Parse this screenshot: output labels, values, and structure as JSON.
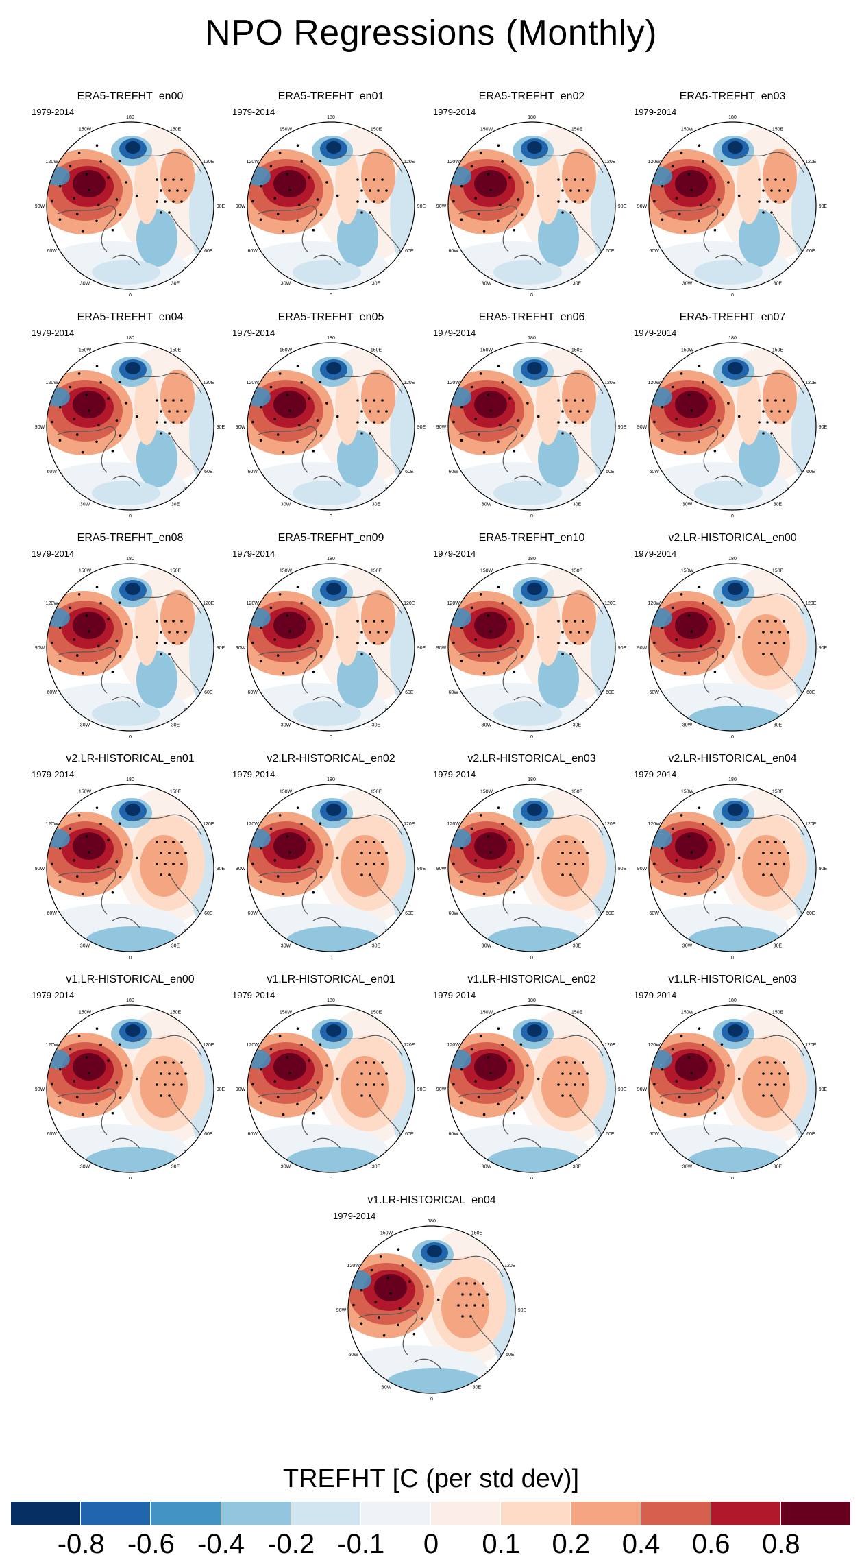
{
  "figure": {
    "title": "NPO Regressions (Monthly)",
    "period_label": "1979-2014",
    "colorbar_title": "TREFHT [C (per std dev)]",
    "colorbar_colors": [
      "#053061",
      "#2166ac",
      "#4393c3",
      "#92c5de",
      "#d1e5f0",
      "#eef3f7",
      "#fbeee8",
      "#fddbc7",
      "#f4a582",
      "#d6604d",
      "#b2182b",
      "#67001f"
    ],
    "colorbar_labels": [
      "-0.8",
      "-0.6",
      "-0.4",
      "-0.2",
      "-0.1",
      "0",
      "0.1",
      "0.2",
      "0.4",
      "0.6",
      "0.8"
    ],
    "lon_labels": [
      "180",
      "150E",
      "120E",
      "90E",
      "60E",
      "30E",
      "0",
      "30W",
      "60W",
      "90W",
      "120W",
      "150W"
    ]
  },
  "panels": [
    {
      "title": "ERA5-TREFHT_en00"
    },
    {
      "title": "ERA5-TREFHT_en01"
    },
    {
      "title": "ERA5-TREFHT_en02"
    },
    {
      "title": "ERA5-TREFHT_en03"
    },
    {
      "title": "ERA5-TREFHT_en04"
    },
    {
      "title": "ERA5-TREFHT_en05"
    },
    {
      "title": "ERA5-TREFHT_en06"
    },
    {
      "title": "ERA5-TREFHT_en07"
    },
    {
      "title": "ERA5-TREFHT_en08"
    },
    {
      "title": "ERA5-TREFHT_en09"
    },
    {
      "title": "ERA5-TREFHT_en10"
    },
    {
      "title": "v2.LR-HISTORICAL_en00"
    },
    {
      "title": "v2.LR-HISTORICAL_en01"
    },
    {
      "title": "v2.LR-HISTORICAL_en02"
    },
    {
      "title": "v2.LR-HISTORICAL_en03"
    },
    {
      "title": "v2.LR-HISTORICAL_en04"
    },
    {
      "title": "v1.LR-HISTORICAL_en00"
    },
    {
      "title": "v1.LR-HISTORICAL_en01"
    },
    {
      "title": "v1.LR-HISTORICAL_en02"
    },
    {
      "title": "v1.LR-HISTORICAL_en03"
    },
    {
      "title": "v1.LR-HISTORICAL_en04"
    }
  ]
}
